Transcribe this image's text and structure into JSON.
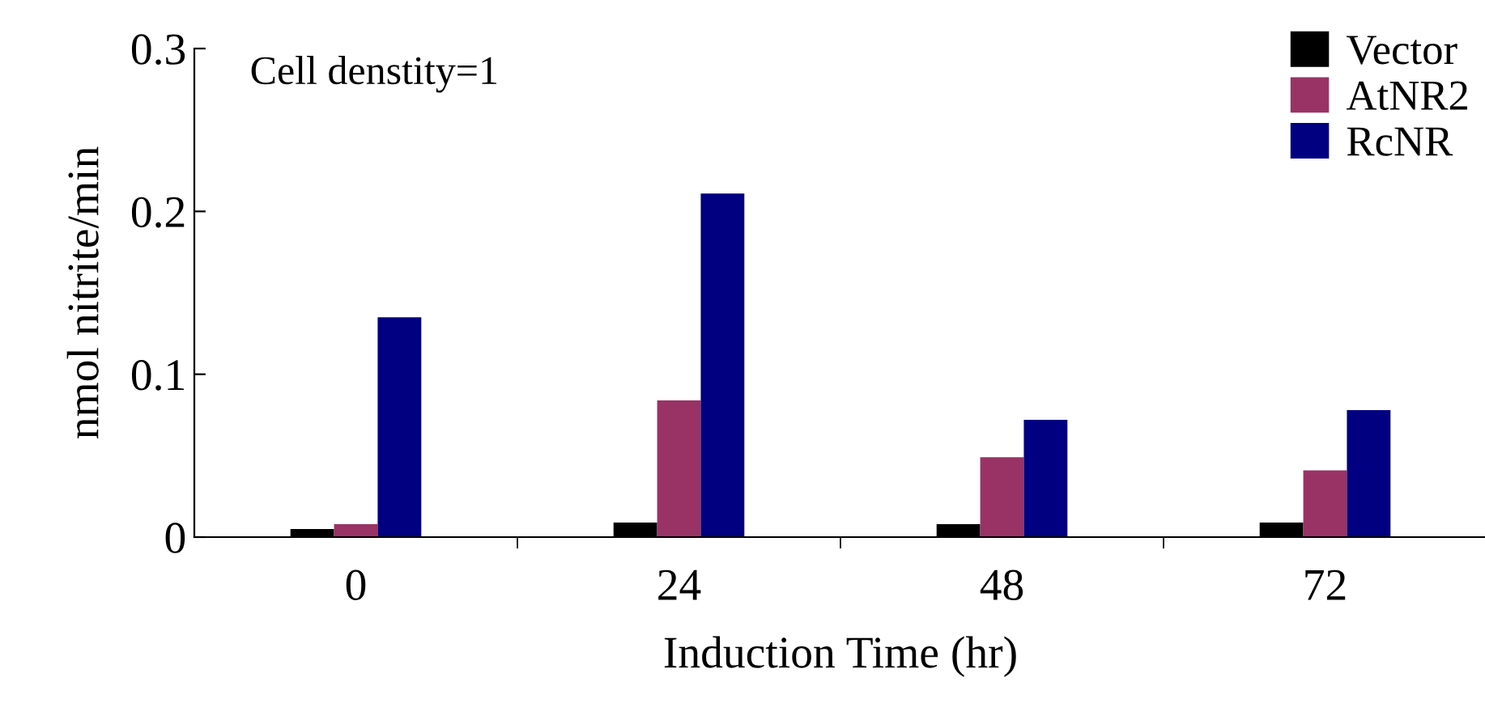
{
  "chart_data": {
    "type": "bar",
    "xlabel": "Induction Time (hr)",
    "ylabel": "nmol nitrite/min",
    "categories": [
      "0",
      "24",
      "48",
      "72"
    ],
    "series": [
      {
        "name": "Vector",
        "color": "#000000",
        "values": [
          0.005,
          0.009,
          0.008,
          0.009
        ]
      },
      {
        "name": "AtNR2",
        "color": "#993366",
        "values": [
          0.008,
          0.084,
          0.049,
          0.041
        ]
      },
      {
        "name": "RcNR",
        "color": "#000080",
        "values": [
          0.135,
          0.211,
          0.072,
          0.078
        ]
      }
    ],
    "ylim": [
      0,
      0.3
    ],
    "yticks": [
      {
        "value": 0,
        "label": "0"
      },
      0.1,
      0.2,
      0.3
    ],
    "grid": false,
    "legend": "top right",
    "annotations": [
      "Cell denstity=1"
    ]
  }
}
